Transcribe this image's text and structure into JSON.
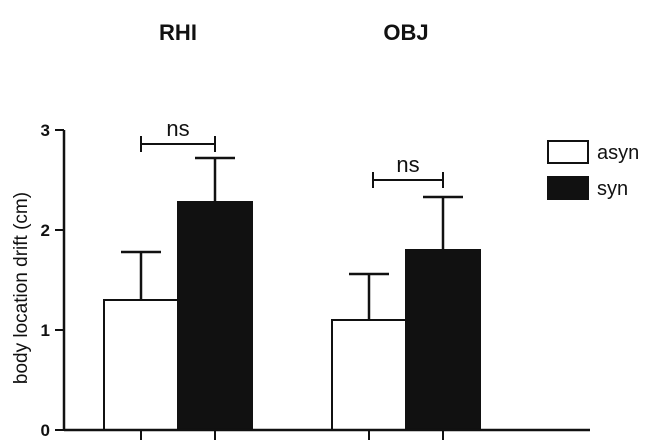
{
  "chart_data": {
    "type": "bar",
    "categories": [
      "RHI",
      "OBJ"
    ],
    "series": [
      {
        "name": "asyn",
        "values": [
          1.3,
          1.1
        ],
        "errors": [
          0.48,
          0.46
        ],
        "color": "#ffffff"
      },
      {
        "name": "syn",
        "values": [
          2.28,
          1.8
        ],
        "errors": [
          0.44,
          0.53
        ],
        "color": "#111111"
      }
    ],
    "ylabel": "body location drift (cm)",
    "ylim": [
      0,
      3
    ],
    "yticks": [
      0,
      1,
      2,
      3
    ],
    "significance": [
      "ns",
      "ns"
    ],
    "legend_position": "top-right",
    "grid": false
  }
}
